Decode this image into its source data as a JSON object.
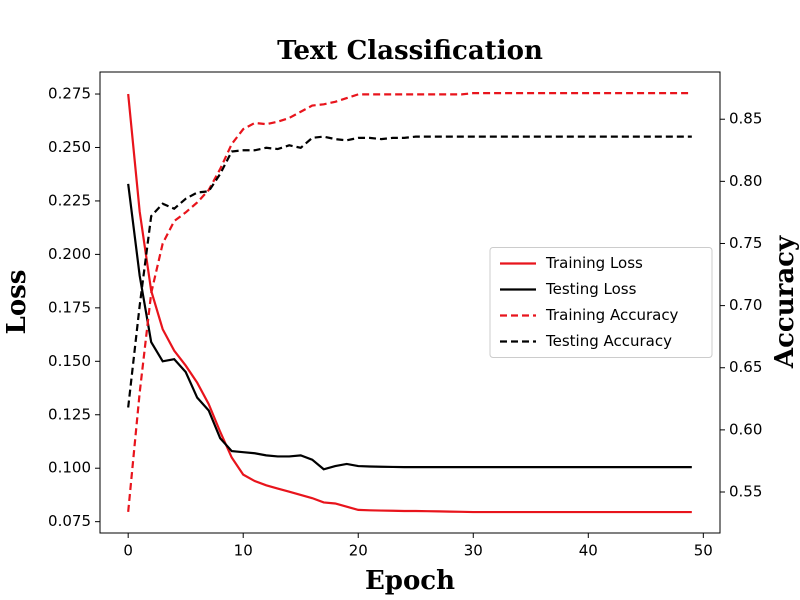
{
  "chart_data": {
    "type": "line",
    "title": "Text Classification",
    "xlabel": "Epoch",
    "ylabel": "Loss",
    "y2label": "Accuracy",
    "x": [
      0,
      1,
      2,
      3,
      4,
      5,
      6,
      7,
      8,
      9,
      10,
      11,
      12,
      13,
      14,
      15,
      16,
      17,
      18,
      19,
      20,
      21,
      22,
      23,
      24,
      25,
      26,
      27,
      28,
      29,
      30,
      31,
      32,
      33,
      34,
      35,
      36,
      37,
      38,
      39,
      40,
      41,
      42,
      43,
      44,
      45,
      46,
      47,
      48,
      49
    ],
    "xlim": [
      -2.45,
      51.45
    ],
    "xticks": [
      0,
      10,
      20,
      30,
      40,
      50
    ],
    "ylim": [
      0.0697,
      0.2853
    ],
    "yticks": [
      0.075,
      {
        "value": 0.1,
        "label": "0.100"
      },
      0.125,
      {
        "value": 0.15,
        "label": "0.150"
      },
      0.175,
      {
        "value": 0.2,
        "label": "0.200"
      },
      0.225,
      {
        "value": 0.25,
        "label": "0.250"
      },
      0.275
    ],
    "y2lim": [
      0.517,
      0.888
    ],
    "y2ticks": [
      0.55,
      {
        "value": 0.6,
        "label": "0.60"
      },
      0.65,
      {
        "value": 0.7,
        "label": "0.70"
      },
      0.75,
      {
        "value": 0.8,
        "label": "0.80"
      },
      0.85
    ],
    "legend": "center right",
    "series": [
      {
        "name": "Training Loss",
        "color": "#e8141c",
        "linestyle": "solid",
        "values": [
          0.275,
          0.22,
          0.183,
          0.165,
          0.155,
          0.148,
          0.14,
          0.13,
          0.117,
          0.105,
          0.097,
          0.094,
          0.092,
          0.0905,
          0.089,
          0.0875,
          0.086,
          0.084,
          0.0835,
          0.082,
          0.0805,
          0.0803,
          0.0802,
          0.0801,
          0.08,
          0.08,
          0.0799,
          0.0798,
          0.0797,
          0.0796,
          0.0795,
          0.0795,
          0.0795,
          0.0795,
          0.0795,
          0.0795,
          0.0795,
          0.0795,
          0.0795,
          0.0795,
          0.0795,
          0.0795,
          0.0795,
          0.0795,
          0.0795,
          0.0795,
          0.0795,
          0.0795,
          0.0795,
          0.0795
        ]
      },
      {
        "name": "Testing Loss",
        "color": "#000000",
        "linestyle": "solid",
        "values": [
          0.233,
          0.19,
          0.159,
          0.15,
          0.151,
          0.145,
          0.133,
          0.127,
          0.114,
          0.108,
          0.1075,
          0.107,
          0.106,
          0.1055,
          0.1055,
          0.106,
          0.104,
          0.0995,
          0.101,
          0.102,
          0.101,
          0.1008,
          0.1007,
          0.1006,
          0.1005,
          0.1005,
          0.1005,
          0.1005,
          0.1005,
          0.1005,
          0.1005,
          0.1005,
          0.1005,
          0.1005,
          0.1005,
          0.1005,
          0.1005,
          0.1005,
          0.1005,
          0.1005,
          0.1005,
          0.1005,
          0.1005,
          0.1005,
          0.1005,
          0.1005,
          0.1005,
          0.1005,
          0.1005,
          0.1005
        ]
      },
      {
        "name": "Training Accuracy",
        "color": "#e8141c",
        "linestyle": "dashed",
        "axis": "y2",
        "values": [
          0.534,
          0.63,
          0.71,
          0.75,
          0.768,
          0.775,
          0.783,
          0.793,
          0.81,
          0.83,
          0.842,
          0.847,
          0.846,
          0.848,
          0.851,
          0.856,
          0.861,
          0.862,
          0.864,
          0.867,
          0.87,
          0.87,
          0.87,
          0.87,
          0.87,
          0.87,
          0.87,
          0.87,
          0.87,
          0.87,
          0.871,
          0.871,
          0.871,
          0.871,
          0.871,
          0.871,
          0.871,
          0.871,
          0.871,
          0.871,
          0.871,
          0.871,
          0.871,
          0.871,
          0.871,
          0.871,
          0.871,
          0.871,
          0.871,
          0.871
        ]
      },
      {
        "name": "Testing Accuracy",
        "color": "#000000",
        "linestyle": "dashed",
        "axis": "y2",
        "values": [
          0.618,
          0.7,
          0.772,
          0.782,
          0.778,
          0.786,
          0.791,
          0.792,
          0.806,
          0.824,
          0.825,
          0.825,
          0.827,
          0.826,
          0.829,
          0.827,
          0.835,
          0.836,
          0.834,
          0.833,
          0.835,
          0.835,
          0.834,
          0.835,
          0.835,
          0.836,
          0.836,
          0.836,
          0.836,
          0.836,
          0.836,
          0.836,
          0.836,
          0.836,
          0.836,
          0.836,
          0.836,
          0.836,
          0.836,
          0.836,
          0.836,
          0.836,
          0.836,
          0.836,
          0.836,
          0.836,
          0.836,
          0.836,
          0.836,
          0.836
        ]
      }
    ]
  }
}
